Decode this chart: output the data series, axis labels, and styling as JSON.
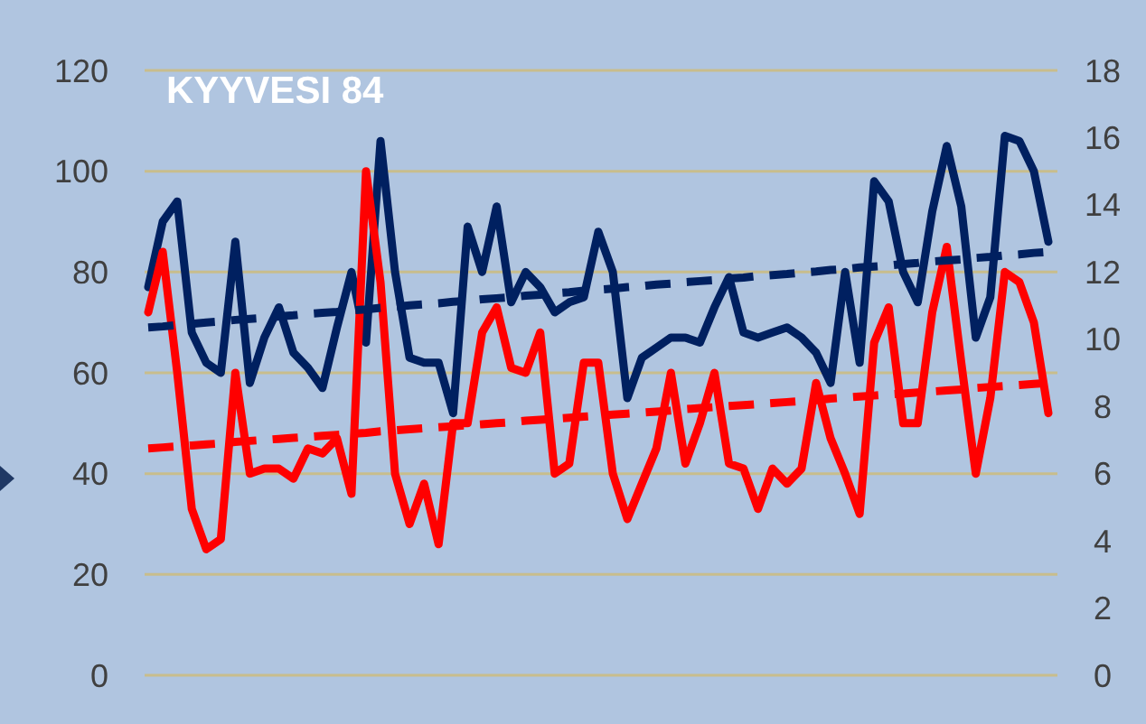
{
  "chart_data": {
    "type": "line",
    "title": "KYYVESI 84",
    "categories": [
      null,
      null,
      null,
      null,
      null,
      null,
      null,
      null,
      null,
      null,
      null,
      null,
      null,
      null,
      null,
      null,
      null,
      null,
      null,
      null,
      null,
      null,
      null,
      null,
      null,
      null,
      null,
      null,
      null,
      null,
      null,
      null,
      null,
      null,
      null,
      null,
      null,
      null,
      null,
      null,
      null,
      null,
      null,
      null,
      null,
      null,
      null,
      null,
      null,
      null,
      null,
      null,
      null,
      null,
      null,
      null,
      null,
      null,
      null,
      null,
      null,
      null,
      null
    ],
    "series": [
      {
        "color": "#002060",
        "values": [
          77,
          90,
          94,
          68,
          62,
          60,
          86,
          58,
          67,
          73,
          64,
          61,
          57,
          69,
          80,
          66,
          106,
          80,
          63,
          62,
          62,
          52,
          89,
          80,
          93,
          74,
          80,
          77,
          72,
          74,
          75,
          88,
          80,
          55,
          63,
          65,
          67,
          67,
          66,
          73,
          79,
          68,
          67,
          68,
          69,
          67,
          64,
          58,
          80,
          62,
          98,
          94,
          80,
          74,
          92,
          105,
          93,
          67,
          75,
          107,
          106,
          100,
          86
        ]
      },
      {
        "color": "#ff0000",
        "values": [
          72,
          84,
          60,
          33,
          25,
          27,
          60,
          40,
          41,
          41,
          39,
          45,
          44,
          47,
          36,
          100,
          78,
          40,
          30,
          38,
          26,
          50,
          50,
          68,
          73,
          61,
          60,
          68,
          40,
          42,
          62,
          62,
          40,
          31,
          38,
          45,
          60,
          42,
          50,
          60,
          42,
          41,
          33,
          41,
          38,
          41,
          58,
          47,
          40,
          32,
          66,
          73,
          50,
          50,
          72,
          85,
          62,
          40,
          55,
          80,
          78,
          70,
          52
        ]
      },
      {
        "color": "#002060",
        "line_style": "dashed",
        "values": [
          69.0,
          69.2,
          69.5,
          69.7,
          70.0,
          70.2,
          70.5,
          70.7,
          70.9,
          71.2,
          71.4,
          71.7,
          71.9,
          72.1,
          72.4,
          72.6,
          72.9,
          73.1,
          73.4,
          73.6,
          73.8,
          74.1,
          74.3,
          74.6,
          74.8,
          75.0,
          75.3,
          75.5,
          75.8,
          76.0,
          76.3,
          76.5,
          76.7,
          77.0,
          77.2,
          77.5,
          77.7,
          78.0,
          78.2,
          78.4,
          78.7,
          78.9,
          79.2,
          79.4,
          79.6,
          79.9,
          80.1,
          80.4,
          80.6,
          80.9,
          81.1,
          81.3,
          81.6,
          81.8,
          82.1,
          82.3,
          82.5,
          82.8,
          83.0,
          83.3,
          83.5,
          83.8,
          84.0
        ]
      },
      {
        "color": "#ff0000",
        "line_style": "dashed",
        "values": [
          45.0,
          45.2,
          45.4,
          45.6,
          45.8,
          46.0,
          46.3,
          46.5,
          46.7,
          46.9,
          47.1,
          47.3,
          47.5,
          47.7,
          47.9,
          48.1,
          48.4,
          48.6,
          48.8,
          49.0,
          49.2,
          49.4,
          49.6,
          49.8,
          50.0,
          50.2,
          50.5,
          50.7,
          50.9,
          51.1,
          51.3,
          51.5,
          51.7,
          51.9,
          52.1,
          52.3,
          52.5,
          52.8,
          53.0,
          53.2,
          53.4,
          53.6,
          53.8,
          54.0,
          54.2,
          54.4,
          54.6,
          54.9,
          55.1,
          55.3,
          55.5,
          55.7,
          55.9,
          56.1,
          56.3,
          56.5,
          56.7,
          57.0,
          57.2,
          57.4,
          57.6,
          57.8,
          58.0
        ]
      }
    ],
    "ylim": [
      0,
      120
    ],
    "yticks": [
      0,
      20,
      40,
      60,
      80,
      100,
      120
    ],
    "y2lim": [
      0,
      18
    ],
    "y2ticks": [
      0,
      2,
      4,
      6,
      8,
      10,
      12,
      14,
      16,
      18
    ],
    "grid": "y",
    "marker": "none",
    "line_style": "solid"
  }
}
